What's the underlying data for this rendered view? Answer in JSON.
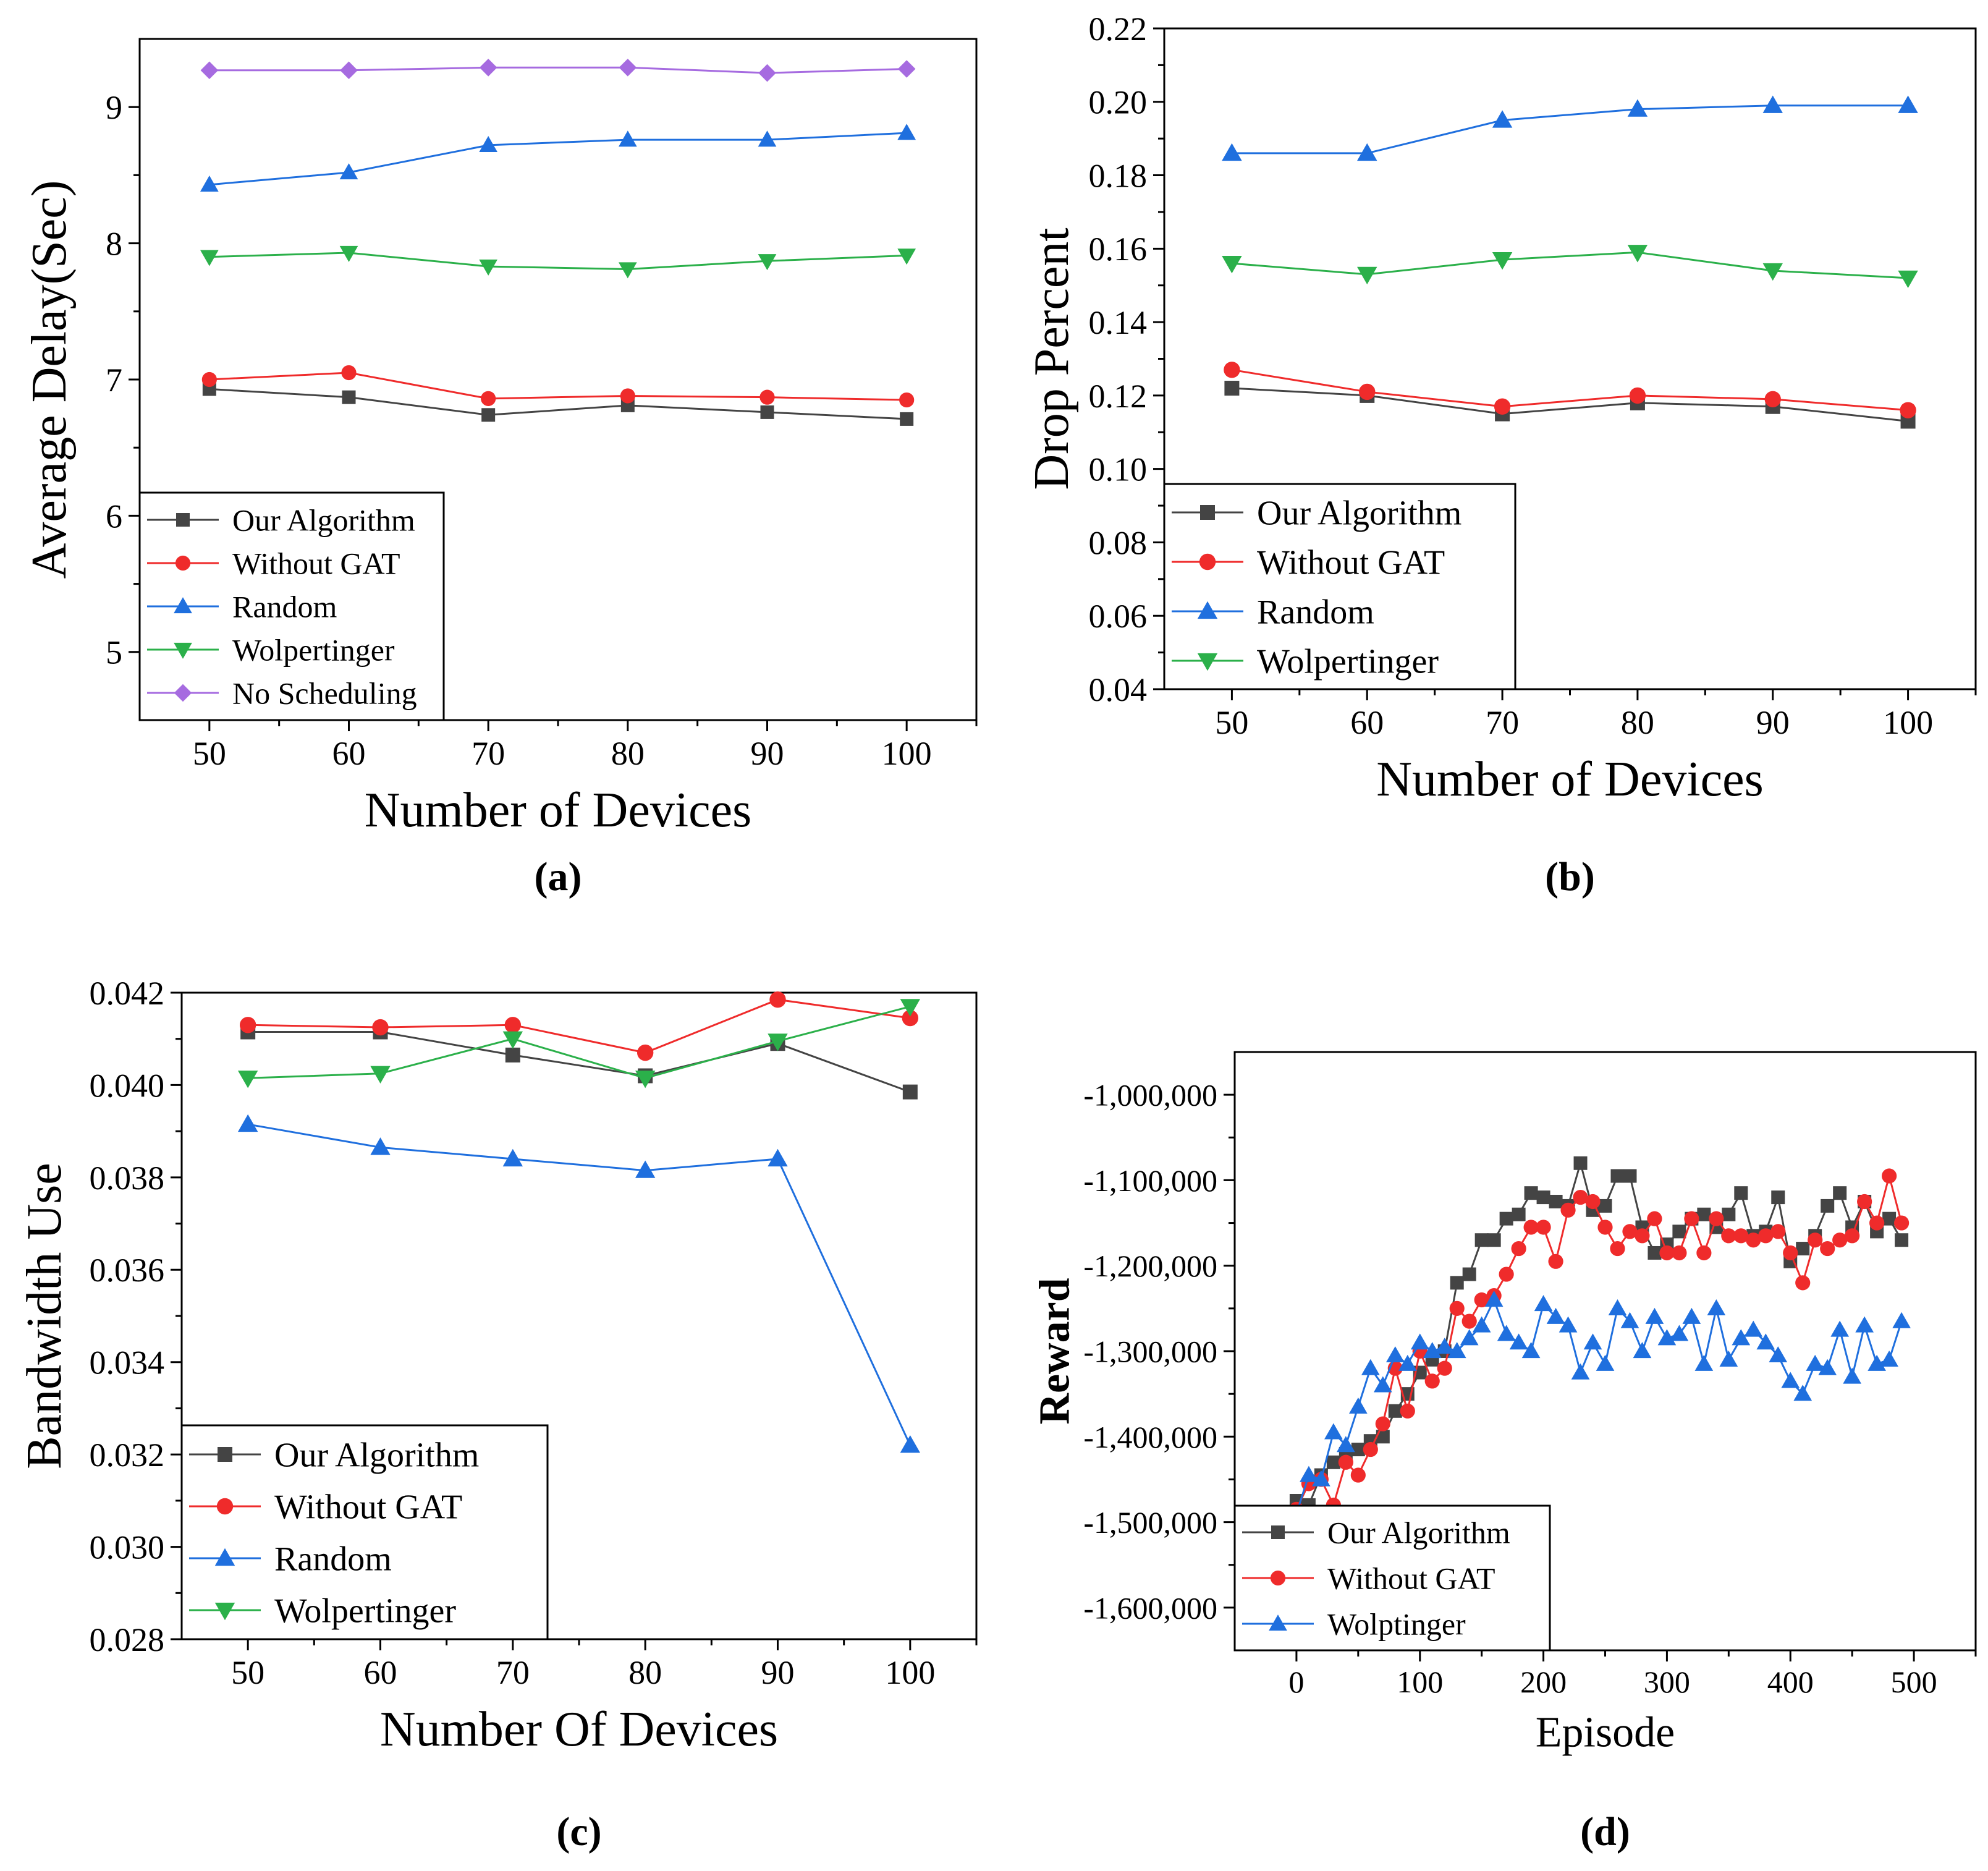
{
  "colors": {
    "ours": "#444444",
    "nogat": "#ef2b2b",
    "random": "#1f6fde",
    "wolp": "#2bb04a",
    "nosched": "#a66be0"
  },
  "chart_data": [
    {
      "panel": "a",
      "type": "line",
      "caption": "(a)",
      "xlabel": "Number of Devices",
      "ylabel": "Average Delay(Sec)",
      "xlim": [
        45,
        105
      ],
      "ylim": [
        4.5,
        9.5
      ],
      "xticks": [
        50,
        60,
        70,
        80,
        90,
        100
      ],
      "yticks": [
        5,
        6,
        7,
        8,
        9
      ],
      "ytick_labels": [
        "5",
        "6",
        "7",
        "8",
        "9"
      ],
      "minor_x": true,
      "legend_position": "bottom-left",
      "x": [
        50,
        60,
        70,
        80,
        90,
        100
      ],
      "series": [
        {
          "name": "Our Algorithm",
          "marker": "square",
          "color_key": "ours",
          "values": [
            6.93,
            6.87,
            6.74,
            6.81,
            6.76,
            6.71
          ]
        },
        {
          "name": "Without GAT",
          "marker": "circle",
          "color_key": "nogat",
          "values": [
            7.0,
            7.05,
            6.86,
            6.88,
            6.87,
            6.85
          ]
        },
        {
          "name": "Random",
          "marker": "triangle-up",
          "color_key": "random",
          "values": [
            8.43,
            8.52,
            8.72,
            8.76,
            8.76,
            8.81
          ]
        },
        {
          "name": "Wolpertinger",
          "marker": "triangle-down",
          "color_key": "wolp",
          "values": [
            7.9,
            7.93,
            7.83,
            7.81,
            7.87,
            7.91
          ]
        },
        {
          "name": "No Scheduling",
          "marker": "diamond",
          "color_key": "nosched",
          "values": [
            9.27,
            9.27,
            9.29,
            9.29,
            9.25,
            9.28
          ]
        }
      ]
    },
    {
      "panel": "b",
      "type": "line",
      "caption": "(b)",
      "xlabel": "Number of Devices",
      "ylabel": "Drop Percent",
      "xlim": [
        45,
        105
      ],
      "ylim": [
        0.04,
        0.22
      ],
      "xticks": [
        50,
        60,
        70,
        80,
        90,
        100
      ],
      "yticks": [
        0.04,
        0.06,
        0.08,
        0.1,
        0.12,
        0.14,
        0.16,
        0.18,
        0.2,
        0.22
      ],
      "ytick_labels": [
        "0.04",
        "0.06",
        "0.08",
        "0.10",
        "0.12",
        "0.14",
        "0.16",
        "0.18",
        "0.20",
        "0.22"
      ],
      "minor_x": true,
      "legend_position": "bottom-left",
      "x": [
        50,
        60,
        70,
        80,
        90,
        100
      ],
      "series": [
        {
          "name": "Our Algorithm",
          "marker": "square",
          "color_key": "ours",
          "values": [
            0.122,
            0.12,
            0.115,
            0.118,
            0.117,
            0.113
          ]
        },
        {
          "name": "Without GAT",
          "marker": "circle",
          "color_key": "nogat",
          "values": [
            0.127,
            0.121,
            0.117,
            0.12,
            0.119,
            0.116
          ]
        },
        {
          "name": "Random",
          "marker": "triangle-up",
          "color_key": "random",
          "values": [
            0.186,
            0.186,
            0.195,
            0.198,
            0.199,
            0.199
          ]
        },
        {
          "name": "Wolpertinger",
          "marker": "triangle-down",
          "color_key": "wolp",
          "values": [
            0.156,
            0.153,
            0.157,
            0.159,
            0.154,
            0.152
          ]
        }
      ]
    },
    {
      "panel": "c",
      "type": "line",
      "caption": "(c)",
      "xlabel": "Number Of Devices",
      "ylabel": "Bandwidth Use",
      "xlim": [
        45,
        105
      ],
      "ylim": [
        0.028,
        0.042
      ],
      "xticks": [
        50,
        60,
        70,
        80,
        90,
        100
      ],
      "yticks": [
        0.028,
        0.03,
        0.032,
        0.034,
        0.036,
        0.038,
        0.04,
        0.042
      ],
      "ytick_labels": [
        "0.028",
        "0.030",
        "0.032",
        "0.034",
        "0.036",
        "0.038",
        "0.040",
        "0.042"
      ],
      "minor_x": true,
      "legend_position": "bottom-left",
      "x": [
        50,
        60,
        70,
        80,
        90,
        100
      ],
      "series": [
        {
          "name": "Our Algorithm",
          "marker": "square",
          "color_key": "ours",
          "values": [
            0.04115,
            0.04115,
            0.04065,
            0.0402,
            0.0409,
            0.03985
          ]
        },
        {
          "name": "Without GAT",
          "marker": "circle",
          "color_key": "nogat",
          "values": [
            0.0413,
            0.04125,
            0.0413,
            0.0407,
            0.04185,
            0.04145
          ]
        },
        {
          "name": "Random",
          "marker": "triangle-up",
          "color_key": "random",
          "values": [
            0.03915,
            0.03865,
            0.0384,
            0.03815,
            0.0384,
            0.0322
          ]
        },
        {
          "name": "Wolpertinger",
          "marker": "triangle-down",
          "color_key": "wolp",
          "values": [
            0.04015,
            0.04025,
            0.041,
            0.04015,
            0.04095,
            0.0417
          ]
        }
      ]
    },
    {
      "panel": "d",
      "type": "line",
      "caption": "(d)",
      "xlabel": "Episode",
      "ylabel": "Reward",
      "xlim": [
        -50,
        550
      ],
      "ylim": [
        -1650000,
        -950000
      ],
      "xticks": [
        0,
        100,
        200,
        300,
        400,
        500
      ],
      "yticks": [
        -1600000,
        -1500000,
        -1400000,
        -1300000,
        -1200000,
        -1100000,
        -1000000
      ],
      "ytick_labels": [
        "-1,600,000",
        "-1,500,000",
        "-1,400,000",
        "-1,300,000",
        "-1,200,000",
        "-1,100,000",
        "-1,000,000"
      ],
      "minor_x": true,
      "legend_position": "bottom-left",
      "x": [
        0,
        10,
        20,
        30,
        40,
        50,
        60,
        70,
        80,
        90,
        100,
        110,
        120,
        130,
        140,
        150,
        160,
        170,
        180,
        190,
        200,
        210,
        220,
        230,
        240,
        250,
        260,
        270,
        280,
        290,
        300,
        310,
        320,
        330,
        340,
        350,
        360,
        370,
        380,
        390,
        400,
        410,
        420,
        430,
        440,
        450,
        460,
        470,
        480,
        490
      ],
      "series": [
        {
          "name": "Our Algorithm",
          "marker": "square",
          "color_key": "ours",
          "values": [
            -1475000,
            -1480000,
            -1445000,
            -1430000,
            -1420000,
            -1415000,
            -1405000,
            -1400000,
            -1370000,
            -1350000,
            -1325000,
            -1310000,
            -1300000,
            -1220000,
            -1210000,
            -1170000,
            -1170000,
            -1145000,
            -1140000,
            -1115000,
            -1120000,
            -1125000,
            -1130000,
            -1080000,
            -1135000,
            -1130000,
            -1095000,
            -1095000,
            -1155000,
            -1185000,
            -1175000,
            -1160000,
            -1145000,
            -1140000,
            -1155000,
            -1140000,
            -1115000,
            -1165000,
            -1160000,
            -1120000,
            -1195000,
            -1180000,
            -1165000,
            -1130000,
            -1115000,
            -1155000,
            -1125000,
            -1160000,
            -1145000,
            -1170000
          ]
        },
        {
          "name": "Without GAT",
          "marker": "circle",
          "color_key": "nogat",
          "values": [
            -1485000,
            -1455000,
            -1450000,
            -1480000,
            -1430000,
            -1445000,
            -1415000,
            -1385000,
            -1320000,
            -1370000,
            -1300000,
            -1335000,
            -1320000,
            -1250000,
            -1265000,
            -1240000,
            -1235000,
            -1210000,
            -1180000,
            -1155000,
            -1155000,
            -1195000,
            -1135000,
            -1120000,
            -1125000,
            -1155000,
            -1180000,
            -1160000,
            -1165000,
            -1145000,
            -1185000,
            -1185000,
            -1145000,
            -1185000,
            -1145000,
            -1165000,
            -1165000,
            -1170000,
            -1165000,
            -1160000,
            -1185000,
            -1220000,
            -1170000,
            -1180000,
            -1170000,
            -1165000,
            -1125000,
            -1150000,
            -1095000,
            -1150000
          ]
        },
        {
          "name": "Wolptinger",
          "marker": "triangle-up",
          "color_key": "random",
          "values": [
            -1490000,
            -1445000,
            -1450000,
            -1395000,
            -1410000,
            -1365000,
            -1320000,
            -1340000,
            -1305000,
            -1315000,
            -1290000,
            -1300000,
            -1295000,
            -1300000,
            -1285000,
            -1270000,
            -1240000,
            -1280000,
            -1290000,
            -1300000,
            -1245000,
            -1260000,
            -1270000,
            -1325000,
            -1290000,
            -1315000,
            -1250000,
            -1265000,
            -1300000,
            -1260000,
            -1285000,
            -1280000,
            -1260000,
            -1315000,
            -1250000,
            -1310000,
            -1285000,
            -1275000,
            -1290000,
            -1305000,
            -1335000,
            -1350000,
            -1315000,
            -1320000,
            -1275000,
            -1330000,
            -1270000,
            -1315000,
            -1310000,
            -1265000
          ]
        }
      ]
    }
  ]
}
